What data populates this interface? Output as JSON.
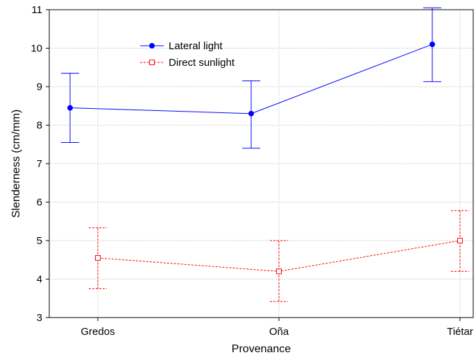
{
  "chart_data": {
    "type": "line",
    "title": "",
    "xlabel": "Provenance",
    "ylabel": "Slenderness (cm/mm)",
    "categories": [
      "Gredos",
      "Oña",
      "Tiétar"
    ],
    "ylim": [
      3,
      11
    ],
    "yticks": [
      3,
      4,
      5,
      6,
      7,
      8,
      9,
      10,
      11
    ],
    "grid": true,
    "legend_position": "top-left",
    "series": [
      {
        "name": "Lateral light",
        "color": "#0000ff",
        "line_style": "solid",
        "marker": "filled-circle",
        "values": [
          8.45,
          8.3,
          10.1
        ],
        "error_low": [
          7.55,
          7.4,
          9.13
        ],
        "error_high": [
          9.35,
          9.15,
          11.05
        ]
      },
      {
        "name": "Direct sunlight",
        "color": "#ff0000",
        "line_style": "dashed",
        "marker": "open-square",
        "values": [
          4.55,
          4.2,
          5.0
        ],
        "error_low": [
          3.75,
          3.42,
          4.2
        ],
        "error_high": [
          5.33,
          5.0,
          5.78
        ]
      }
    ]
  }
}
